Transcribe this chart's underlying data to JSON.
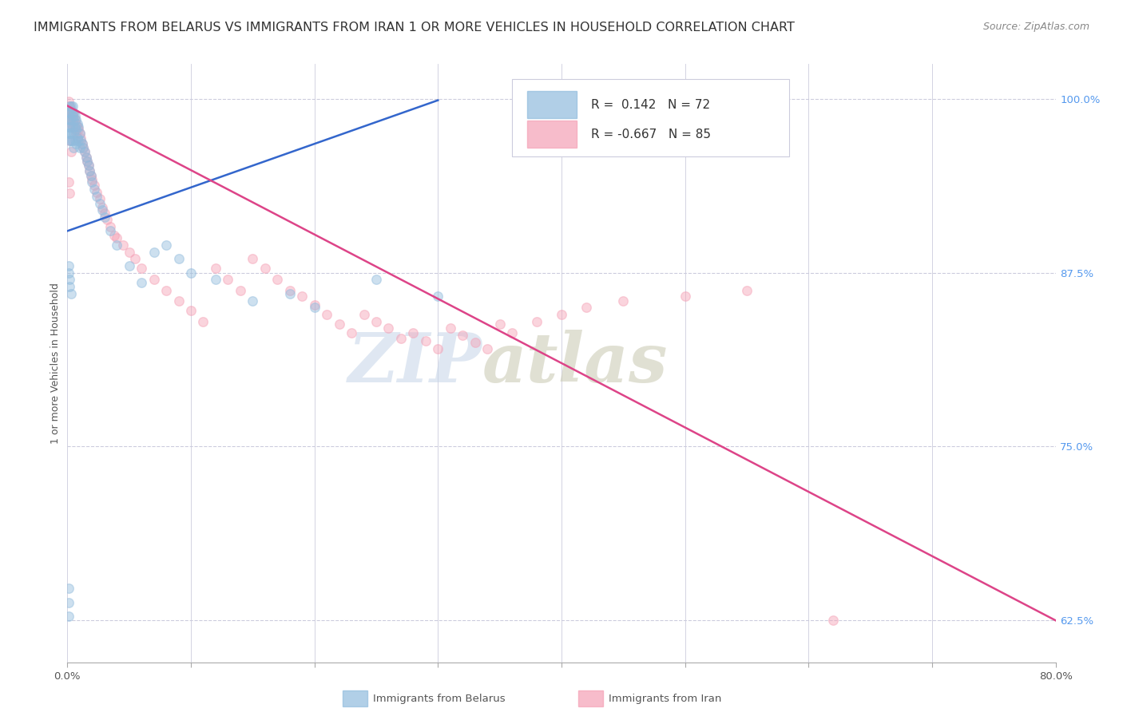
{
  "title": "IMMIGRANTS FROM BELARUS VS IMMIGRANTS FROM IRAN 1 OR MORE VEHICLES IN HOUSEHOLD CORRELATION CHART",
  "source": "Source: ZipAtlas.com",
  "ylabel": "1 or more Vehicles in Household",
  "yticks_right": [
    1.0,
    0.875,
    0.75,
    0.625
  ],
  "ytick_labels_right": [
    "100.0%",
    "87.5%",
    "75.0%",
    "62.5%"
  ],
  "xmin": 0.0,
  "xmax": 0.8,
  "ymin": 0.595,
  "ymax": 1.025,
  "watermark_top": "ZIP",
  "watermark_bottom": "atlas",
  "watermark_color": "#d0dff0",
  "belarus_color": "#90bbdd",
  "belarus_line_color": "#3366cc",
  "iran_color": "#f5a0b5",
  "iran_line_color": "#dd4488",
  "grid_color": "#ccccdd",
  "background_color": "#ffffff",
  "title_fontsize": 11.5,
  "source_fontsize": 9,
  "axis_label_fontsize": 9,
  "tick_fontsize": 9.5,
  "marker_size": 70,
  "marker_alpha": 0.45,
  "line_width": 1.8,
  "legend_belarus_R": "0.142",
  "legend_belarus_N": "72",
  "legend_iran_R": "-0.667",
  "legend_iran_N": "85",
  "belarus_x": [
    0.001,
    0.001,
    0.001,
    0.001,
    0.002,
    0.002,
    0.002,
    0.002,
    0.002,
    0.002,
    0.003,
    0.003,
    0.003,
    0.003,
    0.003,
    0.004,
    0.004,
    0.004,
    0.004,
    0.005,
    0.005,
    0.005,
    0.005,
    0.006,
    0.006,
    0.006,
    0.007,
    0.007,
    0.007,
    0.008,
    0.008,
    0.009,
    0.009,
    0.01,
    0.01,
    0.011,
    0.012,
    0.013,
    0.014,
    0.015,
    0.016,
    0.017,
    0.018,
    0.019,
    0.02,
    0.022,
    0.024,
    0.026,
    0.028,
    0.03,
    0.035,
    0.04,
    0.05,
    0.06,
    0.07,
    0.08,
    0.09,
    0.1,
    0.12,
    0.15,
    0.18,
    0.2,
    0.25,
    0.3,
    0.001,
    0.001,
    0.002,
    0.002,
    0.003,
    0.001,
    0.001,
    0.001
  ],
  "belarus_y": [
    0.99,
    0.985,
    0.98,
    0.975,
    0.995,
    0.99,
    0.985,
    0.98,
    0.975,
    0.97,
    0.995,
    0.99,
    0.985,
    0.975,
    0.97,
    0.995,
    0.988,
    0.98,
    0.97,
    0.99,
    0.985,
    0.975,
    0.965,
    0.988,
    0.98,
    0.97,
    0.985,
    0.978,
    0.968,
    0.982,
    0.972,
    0.98,
    0.97,
    0.975,
    0.965,
    0.97,
    0.968,
    0.965,
    0.962,
    0.958,
    0.955,
    0.952,
    0.948,
    0.945,
    0.94,
    0.935,
    0.93,
    0.925,
    0.92,
    0.915,
    0.905,
    0.895,
    0.88,
    0.868,
    0.89,
    0.895,
    0.885,
    0.875,
    0.87,
    0.855,
    0.86,
    0.85,
    0.87,
    0.858,
    0.88,
    0.875,
    0.87,
    0.865,
    0.86,
    0.648,
    0.638,
    0.628
  ],
  "iran_x": [
    0.001,
    0.001,
    0.002,
    0.002,
    0.002,
    0.003,
    0.003,
    0.003,
    0.004,
    0.004,
    0.004,
    0.005,
    0.005,
    0.006,
    0.006,
    0.007,
    0.007,
    0.008,
    0.008,
    0.009,
    0.01,
    0.011,
    0.012,
    0.013,
    0.014,
    0.015,
    0.016,
    0.017,
    0.018,
    0.019,
    0.02,
    0.022,
    0.024,
    0.026,
    0.028,
    0.03,
    0.032,
    0.035,
    0.038,
    0.04,
    0.045,
    0.05,
    0.055,
    0.06,
    0.07,
    0.08,
    0.09,
    0.1,
    0.11,
    0.12,
    0.13,
    0.14,
    0.15,
    0.16,
    0.17,
    0.18,
    0.19,
    0.2,
    0.21,
    0.22,
    0.23,
    0.24,
    0.25,
    0.26,
    0.27,
    0.28,
    0.29,
    0.3,
    0.31,
    0.32,
    0.33,
    0.34,
    0.35,
    0.36,
    0.38,
    0.4,
    0.42,
    0.45,
    0.5,
    0.55,
    0.002,
    0.003,
    0.001,
    0.002,
    0.62
  ],
  "iran_y": [
    0.998,
    0.992,
    0.995,
    0.99,
    0.985,
    0.992,
    0.988,
    0.982,
    0.99,
    0.985,
    0.98,
    0.988,
    0.982,
    0.985,
    0.978,
    0.982,
    0.975,
    0.98,
    0.972,
    0.978,
    0.975,
    0.972,
    0.968,
    0.965,
    0.962,
    0.958,
    0.955,
    0.952,
    0.948,
    0.945,
    0.942,
    0.938,
    0.933,
    0.928,
    0.922,
    0.918,
    0.913,
    0.908,
    0.902,
    0.9,
    0.895,
    0.89,
    0.885,
    0.878,
    0.87,
    0.862,
    0.855,
    0.848,
    0.84,
    0.878,
    0.87,
    0.862,
    0.885,
    0.878,
    0.87,
    0.862,
    0.858,
    0.852,
    0.845,
    0.838,
    0.832,
    0.845,
    0.84,
    0.835,
    0.828,
    0.832,
    0.826,
    0.82,
    0.835,
    0.83,
    0.825,
    0.82,
    0.838,
    0.832,
    0.84,
    0.845,
    0.85,
    0.855,
    0.858,
    0.862,
    0.97,
    0.962,
    0.94,
    0.932,
    0.625
  ],
  "belarus_trend_x": [
    0.0,
    0.3
  ],
  "belarus_trend_y": [
    0.905,
    0.999
  ],
  "iran_trend_x": [
    0.0,
    0.8
  ],
  "iran_trend_y": [
    0.995,
    0.625
  ]
}
